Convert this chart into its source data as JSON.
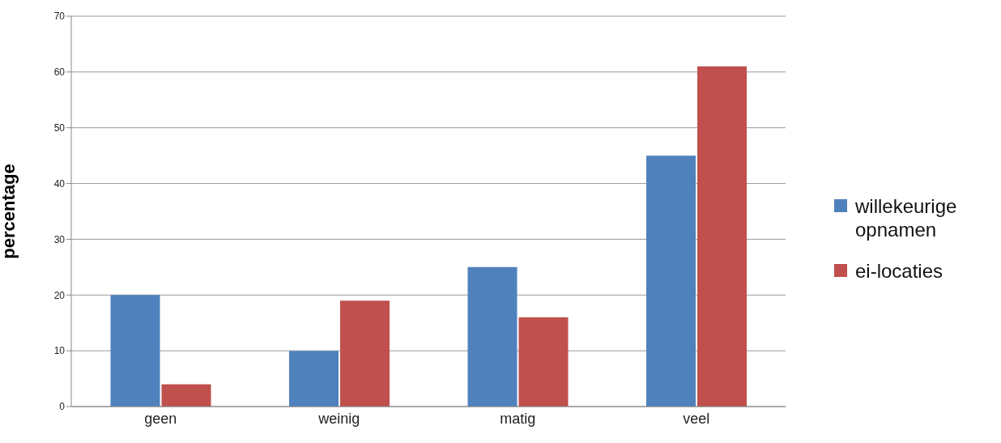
{
  "chart_data": {
    "type": "bar",
    "ylabel": "percentage",
    "categories": [
      "geen",
      "weinig",
      "matig",
      "veel"
    ],
    "series": [
      {
        "name": "willekeurige opnamen",
        "color": "#4f81bd",
        "values": [
          20,
          10,
          25,
          45
        ]
      },
      {
        "name": "ei-locaties",
        "color": "#c0504d",
        "values": [
          4,
          19,
          16,
          61
        ]
      }
    ],
    "ylim": [
      0,
      70
    ],
    "yticks": [
      0,
      10,
      20,
      30,
      40,
      50,
      60,
      70
    ],
    "grid": "y",
    "legend": "right"
  }
}
